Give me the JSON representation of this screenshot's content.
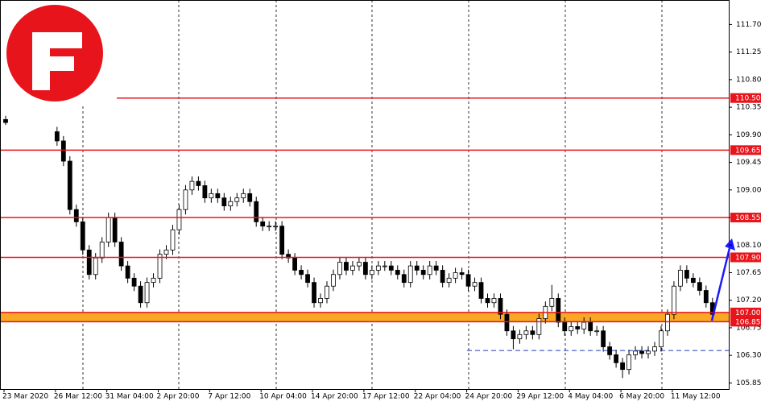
{
  "chart_data": {
    "type": "candlestick",
    "categories": [
      "23 Mar 2020",
      null,
      null,
      null,
      null,
      null,
      null,
      null,
      "26 Mar 12:00",
      null,
      null,
      null,
      null,
      null,
      null,
      null,
      "31 Mar 04:00",
      null,
      null,
      null,
      null,
      null,
      null,
      null,
      "2 Apr 20:00",
      null,
      null,
      null,
      null,
      null,
      null,
      null,
      "7 Apr 12:00",
      null,
      null,
      null,
      null,
      null,
      null,
      null,
      "10 Apr 04:00",
      null,
      null,
      null,
      null,
      null,
      null,
      null,
      "14 Apr 20:00",
      null,
      null,
      null,
      null,
      null,
      null,
      null,
      "17 Apr 12:00",
      null,
      null,
      null,
      null,
      null,
      null,
      null,
      "22 Apr 04:00",
      null,
      null,
      null,
      null,
      null,
      null,
      null,
      "24 Apr 20:00",
      null,
      null,
      null,
      null,
      null,
      null,
      null,
      "29 Apr 12:00",
      null,
      null,
      null,
      null,
      null,
      null,
      null,
      "4 May 04:00",
      null,
      null,
      null,
      null,
      null,
      null,
      null,
      "6 May 20:00",
      null,
      null,
      null,
      null,
      null,
      null,
      null,
      "11 May 12:00",
      null,
      null,
      null,
      null,
      null,
      null
    ],
    "open": [
      110.15,
      null,
      null,
      null,
      null,
      null,
      null,
      null,
      109.95,
      109.8,
      109.47,
      108.68,
      108.48,
      108.02,
      107.62,
      107.89,
      108.15,
      108.55,
      108.15,
      107.76,
      107.56,
      107.43,
      107.16,
      107.49,
      107.56,
      107.95,
      108.02,
      108.35,
      108.68,
      109.0,
      109.14,
      109.07,
      108.87,
      108.94,
      108.87,
      108.74,
      108.81,
      108.87,
      108.94,
      108.81,
      108.48,
      108.41,
      108.41,
      108.41,
      107.95,
      107.89,
      107.69,
      107.62,
      107.49,
      107.16,
      107.23,
      107.43,
      107.62,
      107.82,
      107.69,
      107.76,
      107.82,
      107.62,
      107.69,
      107.76,
      107.76,
      107.69,
      107.62,
      107.49,
      107.76,
      107.69,
      107.62,
      107.76,
      107.69,
      107.49,
      107.56,
      107.65,
      107.62,
      107.43,
      107.49,
      107.23,
      107.16,
      107.23,
      106.97,
      106.7,
      106.57,
      106.64,
      106.7,
      106.64,
      106.9,
      107.1,
      107.23,
      106.84,
      106.7,
      106.77,
      106.73,
      106.84,
      106.7,
      106.7,
      106.44,
      106.31,
      106.18,
      106.07,
      106.31,
      106.37,
      106.33,
      106.37,
      106.44,
      106.7,
      106.97,
      107.43,
      107.69,
      107.56,
      107.49,
      107.36,
      107.16
    ],
    "high": [
      110.21,
      null,
      null,
      null,
      null,
      null,
      null,
      null,
      110.03,
      109.88,
      109.55,
      108.76,
      108.56,
      108.1,
      107.97,
      108.23,
      108.63,
      108.63,
      108.23,
      107.84,
      107.64,
      107.51,
      107.57,
      107.64,
      108.03,
      108.1,
      108.43,
      108.76,
      109.08,
      109.22,
      109.22,
      109.15,
      109.02,
      109.02,
      108.95,
      108.89,
      108.95,
      109.02,
      109.02,
      108.89,
      108.56,
      108.49,
      108.49,
      108.49,
      108.03,
      107.97,
      107.77,
      107.7,
      107.57,
      107.31,
      107.51,
      107.7,
      107.9,
      107.9,
      107.84,
      107.9,
      107.9,
      107.77,
      107.84,
      107.84,
      107.84,
      107.77,
      107.7,
      107.84,
      107.84,
      107.77,
      107.84,
      107.84,
      107.77,
      107.64,
      107.73,
      107.73,
      107.7,
      107.57,
      107.57,
      107.31,
      107.31,
      107.31,
      107.05,
      106.78,
      106.72,
      106.78,
      106.78,
      106.98,
      107.18,
      107.45,
      107.31,
      106.92,
      106.85,
      106.85,
      106.92,
      106.92,
      106.78,
      106.78,
      106.52,
      106.39,
      106.26,
      106.39,
      106.45,
      106.45,
      106.45,
      106.52,
      106.78,
      107.05,
      107.51,
      107.77,
      107.77,
      107.64,
      107.57,
      107.44,
      107.24
    ],
    "low": [
      110.06,
      null,
      null,
      null,
      null,
      null,
      null,
      null,
      109.72,
      109.39,
      108.6,
      108.4,
      107.94,
      107.54,
      107.54,
      107.81,
      108.07,
      108.07,
      107.68,
      107.48,
      107.35,
      107.08,
      107.08,
      107.41,
      107.48,
      107.87,
      107.94,
      108.27,
      108.6,
      108.92,
      108.99,
      108.79,
      108.79,
      108.79,
      108.66,
      108.66,
      108.73,
      108.79,
      108.73,
      108.4,
      108.33,
      108.33,
      108.33,
      107.87,
      107.81,
      107.61,
      107.54,
      107.41,
      107.08,
      107.08,
      107.15,
      107.35,
      107.54,
      107.61,
      107.61,
      107.68,
      107.54,
      107.54,
      107.61,
      107.68,
      107.61,
      107.54,
      107.41,
      107.41,
      107.61,
      107.54,
      107.54,
      107.61,
      107.41,
      107.41,
      107.48,
      107.54,
      107.35,
      107.35,
      107.15,
      107.08,
      107.08,
      106.89,
      106.62,
      106.4,
      106.49,
      106.56,
      106.56,
      106.56,
      106.82,
      107.02,
      106.76,
      106.62,
      106.62,
      106.65,
      106.65,
      106.62,
      106.62,
      106.36,
      106.23,
      106.1,
      105.93,
      105.99,
      106.23,
      106.25,
      106.25,
      106.29,
      106.36,
      106.62,
      106.89,
      107.35,
      107.48,
      107.41,
      107.28,
      107.08,
      106.89
    ],
    "close": [
      110.1,
      null,
      null,
      null,
      null,
      null,
      null,
      null,
      109.8,
      109.47,
      108.68,
      108.48,
      108.02,
      107.62,
      107.89,
      108.15,
      108.55,
      108.15,
      107.76,
      107.56,
      107.43,
      107.16,
      107.49,
      107.56,
      107.95,
      108.02,
      108.35,
      108.68,
      109.0,
      109.14,
      109.07,
      108.87,
      108.94,
      108.87,
      108.74,
      108.81,
      108.87,
      108.94,
      108.81,
      108.48,
      108.41,
      108.41,
      108.41,
      107.95,
      107.89,
      107.69,
      107.62,
      107.49,
      107.16,
      107.23,
      107.43,
      107.62,
      107.82,
      107.69,
      107.76,
      107.82,
      107.62,
      107.69,
      107.76,
      107.76,
      107.69,
      107.62,
      107.49,
      107.76,
      107.69,
      107.62,
      107.76,
      107.69,
      107.49,
      107.56,
      107.65,
      107.62,
      107.43,
      107.49,
      107.23,
      107.16,
      107.23,
      106.97,
      106.7,
      106.57,
      106.64,
      106.7,
      106.64,
      106.9,
      107.1,
      107.23,
      106.84,
      106.7,
      106.77,
      106.73,
      106.84,
      106.7,
      106.7,
      106.44,
      106.31,
      106.18,
      106.07,
      106.31,
      106.37,
      106.33,
      106.37,
      106.44,
      106.7,
      106.97,
      107.43,
      107.69,
      107.56,
      107.49,
      107.36,
      107.16,
      106.97
    ],
    "ylim": [
      105.75,
      112.1
    ],
    "yticks": [
      105.85,
      {
        "value": 106.3,
        "label": "106.30"
      },
      106.75,
      {
        "value": 107.2,
        "label": "107.20"
      },
      107.65,
      {
        "value": 108.1,
        "label": "108.10"
      },
      108.55,
      {
        "value": 109,
        "label": "109.00"
      },
      109.45,
      {
        "value": 109.9,
        "label": "109.90"
      },
      110.35,
      {
        "value": 110.8,
        "label": "110.80"
      },
      111.25,
      {
        "value": 111.7,
        "label": "111.70"
      }
    ],
    "levels": [
      {
        "value": 110.5,
        "label": "110.50"
      },
      {
        "value": 109.65,
        "label": "109.65"
      },
      {
        "value": 108.55,
        "label": "108.55"
      },
      {
        "value": 107.9,
        "label": "107.90"
      },
      {
        "value": 107,
        "label": "107.00"
      },
      {
        "value": 106.85,
        "label": "106.85"
      }
    ],
    "zone": [
      106.85,
      107.0
    ],
    "dashed_line": 106.38,
    "colors": {
      "candle": "#000000",
      "level": "#e8141c",
      "zone": "#f9a825",
      "dashed": "#1f3fbf"
    }
  }
}
